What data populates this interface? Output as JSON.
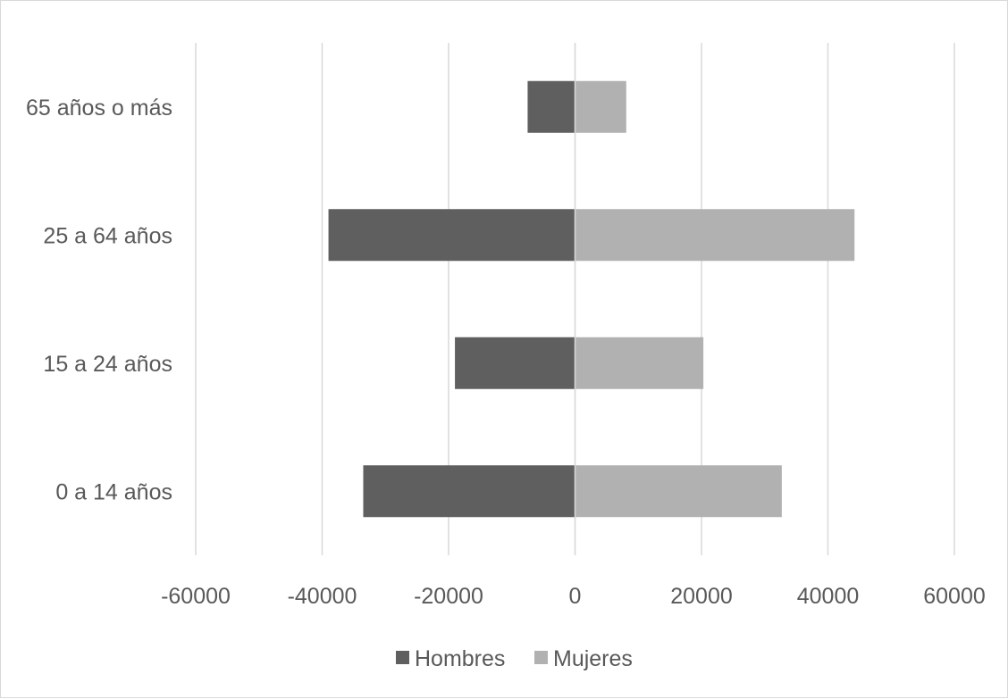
{
  "chart_data": {
    "type": "bar",
    "orientation": "horizontal",
    "stacked": true,
    "categories": [
      "0 a 14 años",
      "15 a 24 años",
      "25 a 64 años",
      "65 años o más"
    ],
    "series": [
      {
        "name": "Hombres",
        "values": [
          -33500,
          -19000,
          -39000,
          -7500
        ],
        "color": "#5f5f5f"
      },
      {
        "name": "Mujeres",
        "values": [
          32700,
          20300,
          44200,
          8100
        ],
        "color": "#b1b1b1"
      }
    ],
    "xlim": [
      -60000,
      60000
    ],
    "xticks": [
      "-60000",
      "-40000",
      "-20000",
      "0",
      "20000",
      "40000",
      "60000"
    ],
    "xtick_values": [
      -60000,
      -40000,
      -20000,
      0,
      20000,
      40000,
      60000
    ],
    "grid": "vertical",
    "legend_position": "bottom",
    "title": "",
    "xlabel": "",
    "ylabel": ""
  }
}
